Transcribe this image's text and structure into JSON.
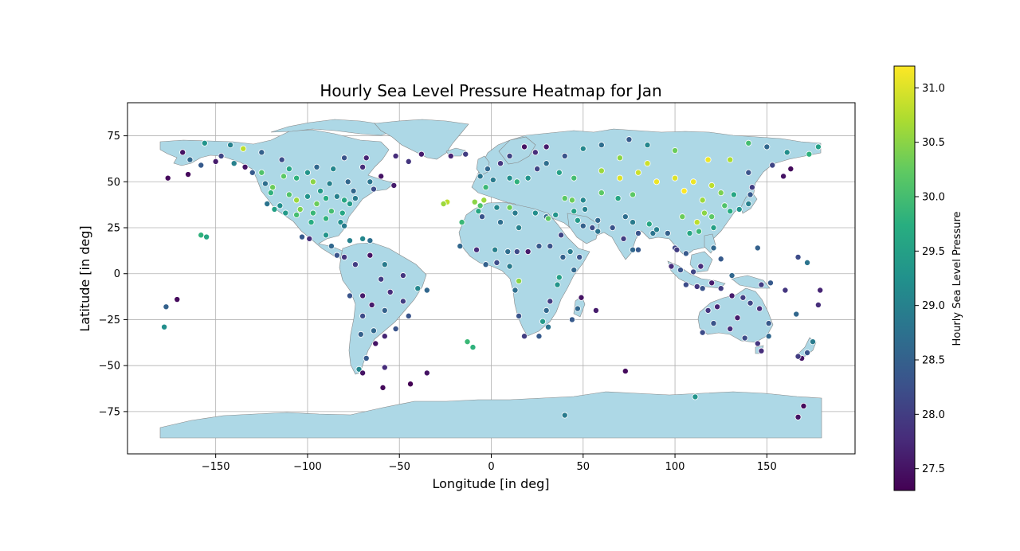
{
  "chart_data": {
    "type": "scatter",
    "title": "Hourly Sea Level Pressure Heatmap for Jan",
    "xlabel": "Longitude [in deg]",
    "ylabel": "Latitude [in deg]",
    "xlim": [
      -198,
      198
    ],
    "ylim": [
      -98,
      93
    ],
    "xticks": [
      -150,
      -100,
      -50,
      0,
      50,
      100,
      150
    ],
    "yticks": [
      -75,
      -50,
      -25,
      0,
      25,
      50,
      75
    ],
    "xtick_labels": [
      "−150",
      "−100",
      "−50",
      "0",
      "50",
      "100",
      "150"
    ],
    "ytick_labels": [
      "−75",
      "−50",
      "−25",
      "0",
      "25",
      "50",
      "75"
    ],
    "grid": true,
    "colormap": "viridis",
    "land_color": "#add8e6",
    "border_color": "#888888",
    "colorbar": {
      "label": "Hourly Sea Level Pressure",
      "range": [
        27.3,
        31.2
      ],
      "ticks": [
        27.5,
        28.0,
        28.5,
        29.0,
        29.5,
        30.0,
        30.5,
        31.0
      ],
      "tick_labels": [
        "27.5",
        "28.0",
        "28.5",
        "29.0",
        "29.5",
        "30.0",
        "30.5",
        "31.0"
      ]
    },
    "points": [
      [
        -168,
        66,
        27.5
      ],
      [
        -164,
        62,
        28.6
      ],
      [
        -158,
        59,
        28.4
      ],
      [
        -150,
        61,
        27.6
      ],
      [
        -147,
        64,
        28.1
      ],
      [
        -156,
        71,
        29.3
      ],
      [
        -165,
        54,
        27.4
      ],
      [
        -176,
        52,
        27.4
      ],
      [
        -134,
        58,
        27.5
      ],
      [
        -130,
        55,
        28.4
      ],
      [
        -123,
        49,
        28.7
      ],
      [
        -140,
        60,
        29.0
      ],
      [
        -135,
        68,
        30.8
      ],
      [
        -125,
        66,
        28.5
      ],
      [
        -113,
        53,
        30.2
      ],
      [
        -106,
        52,
        29.8
      ],
      [
        -97,
        50,
        30.5
      ],
      [
        -114,
        62,
        28.2
      ],
      [
        -95,
        58,
        28.6
      ],
      [
        -86,
        57,
        29.1
      ],
      [
        -80,
        63,
        28.3
      ],
      [
        -70,
        58,
        27.8
      ],
      [
        -68,
        63,
        27.7
      ],
      [
        -60,
        53,
        27.5
      ],
      [
        -53,
        48,
        27.6
      ],
      [
        -64,
        46,
        28.2
      ],
      [
        -75,
        45,
        28.6
      ],
      [
        -120,
        44,
        29.8
      ],
      [
        -110,
        43,
        30.1
      ],
      [
        -100,
        42,
        29.3
      ],
      [
        -90,
        41,
        29.7
      ],
      [
        -80,
        40,
        29.6
      ],
      [
        -118,
        35,
        29.5
      ],
      [
        -112,
        33,
        29.4
      ],
      [
        -104,
        35,
        30.4
      ],
      [
        -97,
        33,
        29.9
      ],
      [
        -87,
        34,
        30.0
      ],
      [
        -81,
        33,
        29.6
      ],
      [
        -90,
        30,
        29.8
      ],
      [
        -98,
        28,
        29.7
      ],
      [
        -122,
        38,
        28.8
      ],
      [
        -119,
        47,
        30.3
      ],
      [
        -106,
        40,
        30.6
      ],
      [
        -93,
        45,
        29.4
      ],
      [
        -84,
        42,
        29.0
      ],
      [
        -74,
        41,
        28.9
      ],
      [
        -77,
        38,
        29.4
      ],
      [
        -82,
        28,
        29.2
      ],
      [
        -80,
        26,
        28.9
      ],
      [
        -106,
        32,
        30.0
      ],
      [
        -115,
        37,
        29.2
      ],
      [
        -95,
        38,
        30.3
      ],
      [
        -103,
        20,
        28.4
      ],
      [
        -99,
        19,
        27.8
      ],
      [
        -90,
        21,
        29.3
      ],
      [
        -87,
        15,
        28.6
      ],
      [
        -84,
        10,
        28.3
      ],
      [
        -80,
        9,
        27.9
      ],
      [
        -77,
        18,
        29.0
      ],
      [
        -66,
        18,
        28.7
      ],
      [
        -70,
        19,
        29.1
      ],
      [
        -155,
        20,
        29.6
      ],
      [
        -158,
        21,
        29.8
      ],
      [
        -171,
        -14,
        27.4
      ],
      [
        -177,
        -18,
        28.5
      ],
      [
        -178,
        -29,
        29.2
      ],
      [
        -74,
        5,
        28.0
      ],
      [
        -66,
        10,
        27.5
      ],
      [
        -58,
        5,
        28.9
      ],
      [
        -70,
        -12,
        27.6
      ],
      [
        -77,
        -12,
        28.3
      ],
      [
        -60,
        -3,
        28.0
      ],
      [
        -48,
        -1,
        27.9
      ],
      [
        -40,
        -8,
        29.1
      ],
      [
        -35,
        -9,
        28.6
      ],
      [
        -45,
        -23,
        28.3
      ],
      [
        -48,
        -15,
        28.0
      ],
      [
        -55,
        -10,
        27.8
      ],
      [
        -58,
        -20,
        28.5
      ],
      [
        -65,
        -17,
        27.6
      ],
      [
        -71,
        -33,
        28.5
      ],
      [
        -70,
        -23,
        28.2
      ],
      [
        -64,
        -31,
        28.6
      ],
      [
        -58,
        -34,
        27.7
      ],
      [
        -52,
        -30,
        28.3
      ],
      [
        -63,
        -38,
        27.5
      ],
      [
        -68,
        -46,
        28.4
      ],
      [
        -72,
        -52,
        29.1
      ],
      [
        -70,
        -54,
        27.5
      ],
      [
        -58,
        -51,
        27.8
      ],
      [
        -59,
        -62,
        27.4
      ],
      [
        -44,
        -60,
        27.3
      ],
      [
        -35,
        -54,
        27.5
      ],
      [
        -13,
        -37,
        29.9
      ],
      [
        -10,
        -40,
        29.8
      ],
      [
        -22,
        64,
        27.7
      ],
      [
        -14,
        65,
        28.0
      ],
      [
        -38,
        65,
        27.6
      ],
      [
        -52,
        64,
        27.8
      ],
      [
        -45,
        61,
        27.9
      ],
      [
        -24,
        39,
        30.8
      ],
      [
        -26,
        38,
        30.6
      ],
      [
        -16,
        28,
        29.9
      ],
      [
        -9,
        39,
        30.5
      ],
      [
        -4,
        40,
        30.6
      ],
      [
        -6,
        37,
        30.1
      ],
      [
        -3,
        47,
        29.9
      ],
      [
        1,
        51,
        28.9
      ],
      [
        -6,
        53,
        28.8
      ],
      [
        -2,
        57,
        28.6
      ],
      [
        5,
        60,
        27.9
      ],
      [
        10,
        52,
        29.2
      ],
      [
        14,
        50,
        29.8
      ],
      [
        20,
        52,
        29.3
      ],
      [
        25,
        57,
        28.1
      ],
      [
        30,
        60,
        28.7
      ],
      [
        37,
        55,
        29.5
      ],
      [
        45,
        52,
        30.0
      ],
      [
        24,
        66,
        27.8
      ],
      [
        18,
        69,
        27.5
      ],
      [
        10,
        64,
        28.1
      ],
      [
        30,
        69,
        27.6
      ],
      [
        40,
        64,
        28.3
      ],
      [
        50,
        68,
        29.1
      ],
      [
        60,
        56,
        30.6
      ],
      [
        70,
        52,
        31.0
      ],
      [
        80,
        55,
        30.9
      ],
      [
        90,
        50,
        31.1
      ],
      [
        100,
        52,
        31.0
      ],
      [
        105,
        45,
        31.2
      ],
      [
        110,
        50,
        31.1
      ],
      [
        120,
        48,
        30.8
      ],
      [
        125,
        44,
        30.4
      ],
      [
        115,
        40,
        30.6
      ],
      [
        116,
        33,
        30.5
      ],
      [
        120,
        31,
        30.2
      ],
      [
        112,
        28,
        30.8
      ],
      [
        104,
        31,
        30.3
      ],
      [
        113,
        23,
        29.9
      ],
      [
        108,
        22,
        29.6
      ],
      [
        121,
        25,
        29.5
      ],
      [
        127,
        37,
        30.1
      ],
      [
        130,
        34,
        29.7
      ],
      [
        135,
        35,
        29.3
      ],
      [
        140,
        38,
        29.0
      ],
      [
        141,
        43,
        28.4
      ],
      [
        142,
        47,
        28.0
      ],
      [
        132,
        43,
        29.6
      ],
      [
        140,
        55,
        28.3
      ],
      [
        153,
        59,
        28.1
      ],
      [
        159,
        53,
        27.5
      ],
      [
        163,
        57,
        27.4
      ],
      [
        150,
        69,
        28.6
      ],
      [
        140,
        71,
        30.0
      ],
      [
        130,
        62,
        30.7
      ],
      [
        118,
        62,
        31.1
      ],
      [
        100,
        67,
        30.3
      ],
      [
        85,
        70,
        29.1
      ],
      [
        75,
        73,
        28.4
      ],
      [
        60,
        70,
        28.7
      ],
      [
        70,
        63,
        30.5
      ],
      [
        85,
        60,
        30.9
      ],
      [
        77,
        43,
        30.2
      ],
      [
        69,
        41,
        29.6
      ],
      [
        60,
        44,
        30.2
      ],
      [
        50,
        40,
        29.1
      ],
      [
        45,
        34,
        29.5
      ],
      [
        51,
        35,
        29.0
      ],
      [
        58,
        29,
        28.6
      ],
      [
        66,
        25,
        28.3
      ],
      [
        73,
        31,
        28.7
      ],
      [
        77,
        28,
        28.9
      ],
      [
        80,
        22,
        28.3
      ],
      [
        77,
        13,
        28.6
      ],
      [
        72,
        19,
        28.0
      ],
      [
        80,
        13,
        28.4
      ],
      [
        88,
        22,
        28.8
      ],
      [
        90,
        24,
        29.0
      ],
      [
        86,
        27,
        29.6
      ],
      [
        96,
        22,
        28.5
      ],
      [
        100,
        14,
        28.1
      ],
      [
        106,
        11,
        28.4
      ],
      [
        103,
        2,
        28.3
      ],
      [
        101,
        13,
        28.0
      ],
      [
        98,
        4,
        27.8
      ],
      [
        106,
        -6,
        28.2
      ],
      [
        112,
        -7,
        27.9
      ],
      [
        115,
        -8,
        28.3
      ],
      [
        120,
        -5,
        27.6
      ],
      [
        125,
        -8,
        28.0
      ],
      [
        131,
        -1,
        28.6
      ],
      [
        125,
        8,
        28.4
      ],
      [
        121,
        14,
        28.6
      ],
      [
        114,
        4,
        27.8
      ],
      [
        110,
        1,
        28.1
      ],
      [
        37,
        -2,
        29.5
      ],
      [
        36,
        -6,
        29.3
      ],
      [
        32,
        -15,
        28.0
      ],
      [
        30,
        -20,
        28.6
      ],
      [
        28,
        -26,
        29.4
      ],
      [
        18,
        -34,
        28.0
      ],
      [
        26,
        -34,
        28.4
      ],
      [
        31,
        -29,
        28.8
      ],
      [
        15,
        -23,
        28.3
      ],
      [
        13,
        -9,
        28.7
      ],
      [
        15,
        -4,
        30.5
      ],
      [
        10,
        4,
        28.9
      ],
      [
        3,
        6,
        28.2
      ],
      [
        -3,
        5,
        28.5
      ],
      [
        -8,
        13,
        27.8
      ],
      [
        -17,
        15,
        28.6
      ],
      [
        2,
        13,
        29.0
      ],
      [
        9,
        12,
        28.7
      ],
      [
        14,
        12,
        28.2
      ],
      [
        20,
        12,
        27.6
      ],
      [
        26,
        15,
        28.4
      ],
      [
        32,
        15,
        28.3
      ],
      [
        39,
        9,
        28.5
      ],
      [
        45,
        2,
        28.6
      ],
      [
        48,
        9,
        28.3
      ],
      [
        43,
        12,
        28.9
      ],
      [
        38,
        21,
        28.1
      ],
      [
        30,
        31,
        28.6
      ],
      [
        31,
        30,
        30.2
      ],
      [
        24,
        33,
        29.2
      ],
      [
        13,
        33,
        28.9
      ],
      [
        3,
        36,
        29.1
      ],
      [
        10,
        36,
        30.3
      ],
      [
        -7,
        34,
        29.6
      ],
      [
        -5,
        31,
        28.3
      ],
      [
        5,
        28,
        28.7
      ],
      [
        15,
        25,
        29.0
      ],
      [
        35,
        32,
        29.3
      ],
      [
        40,
        41,
        30.2
      ],
      [
        44,
        40,
        30.3
      ],
      [
        47,
        29,
        29.4
      ],
      [
        50,
        26,
        28.5
      ],
      [
        55,
        25,
        28.2
      ],
      [
        58,
        23,
        28.8
      ],
      [
        57,
        -20,
        27.6
      ],
      [
        47,
        -19,
        28.6
      ],
      [
        44,
        -25,
        28.4
      ],
      [
        49,
        -13,
        27.5
      ],
      [
        73,
        -53,
        27.4
      ],
      [
        40,
        -77,
        28.9
      ],
      [
        111,
        -67,
        29.3
      ],
      [
        167,
        -78,
        27.5
      ],
      [
        170,
        -72,
        27.4
      ],
      [
        115,
        -32,
        28.2
      ],
      [
        118,
        -20,
        27.9
      ],
      [
        123,
        -18,
        27.7
      ],
      [
        131,
        -12,
        27.6
      ],
      [
        137,
        -13,
        28.0
      ],
      [
        146,
        -19,
        27.8
      ],
      [
        151,
        -27,
        28.4
      ],
      [
        151,
        -34,
        28.6
      ],
      [
        145,
        -38,
        27.9
      ],
      [
        138,
        -35,
        28.2
      ],
      [
        134,
        -24,
        27.6
      ],
      [
        130,
        -30,
        27.8
      ],
      [
        121,
        -27,
        28.3
      ],
      [
        147,
        -42,
        27.8
      ],
      [
        141,
        -16,
        28.1
      ],
      [
        147,
        -6,
        28.0
      ],
      [
        152,
        -5,
        28.4
      ],
      [
        160,
        -9,
        27.9
      ],
      [
        166,
        -22,
        28.6
      ],
      [
        178,
        -17,
        27.8
      ],
      [
        175,
        -37,
        28.9
      ],
      [
        172,
        -43,
        28.3
      ],
      [
        169,
        -46,
        27.5
      ],
      [
        167,
        -45,
        28.0
      ],
      [
        145,
        14,
        28.5
      ],
      [
        167,
        9,
        28.2
      ],
      [
        172,
        6,
        28.8
      ],
      [
        179,
        -9,
        27.7
      ],
      [
        161,
        66,
        29.2
      ],
      [
        173,
        65,
        29.8
      ],
      [
        178,
        69,
        29.5
      ],
      [
        -142,
        70,
        29.0
      ],
      [
        -125,
        55,
        30.1
      ],
      [
        -110,
        57,
        29.6
      ],
      [
        -100,
        55,
        29.3
      ],
      [
        -88,
        49,
        29.0
      ],
      [
        -78,
        50,
        28.6
      ],
      [
        -66,
        50,
        28.8
      ]
    ]
  }
}
